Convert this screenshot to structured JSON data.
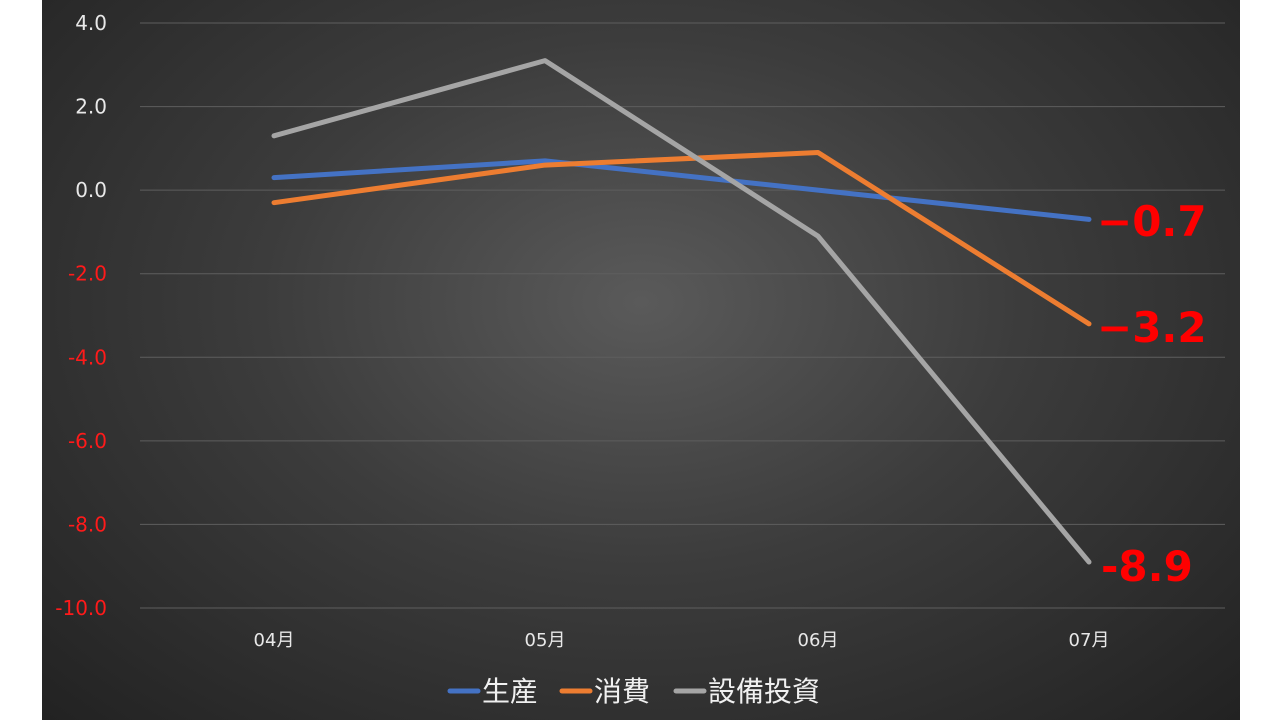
{
  "chart_data": {
    "type": "line",
    "categories": [
      "04月",
      "05月",
      "06月",
      "07月"
    ],
    "series": [
      {
        "name": "生産",
        "values": [
          0.3,
          0.7,
          0.0,
          -0.7
        ],
        "color": "#4472c4"
      },
      {
        "name": "消費",
        "values": [
          -0.3,
          0.6,
          0.9,
          -3.2
        ],
        "color": "#ed7d31"
      },
      {
        "name": "設備投資",
        "values": [
          1.3,
          3.1,
          -1.1,
          -8.9
        ],
        "color": "#a5a5a5"
      }
    ],
    "yticks": [
      "4.0",
      "2.0",
      "0.0",
      "-2.0",
      "-4.0",
      "-6.0",
      "-8.0",
      "-10.0"
    ],
    "ylim": [
      -10,
      4
    ],
    "grid": true,
    "legend": "bottom",
    "end_labels": [
      "−0.7",
      "−3.2",
      "-8.9"
    ],
    "colors": {
      "positive_tick": "#e8e8e8",
      "negative_tick": "#ff1a1a",
      "highlight": "#ff0000"
    }
  }
}
